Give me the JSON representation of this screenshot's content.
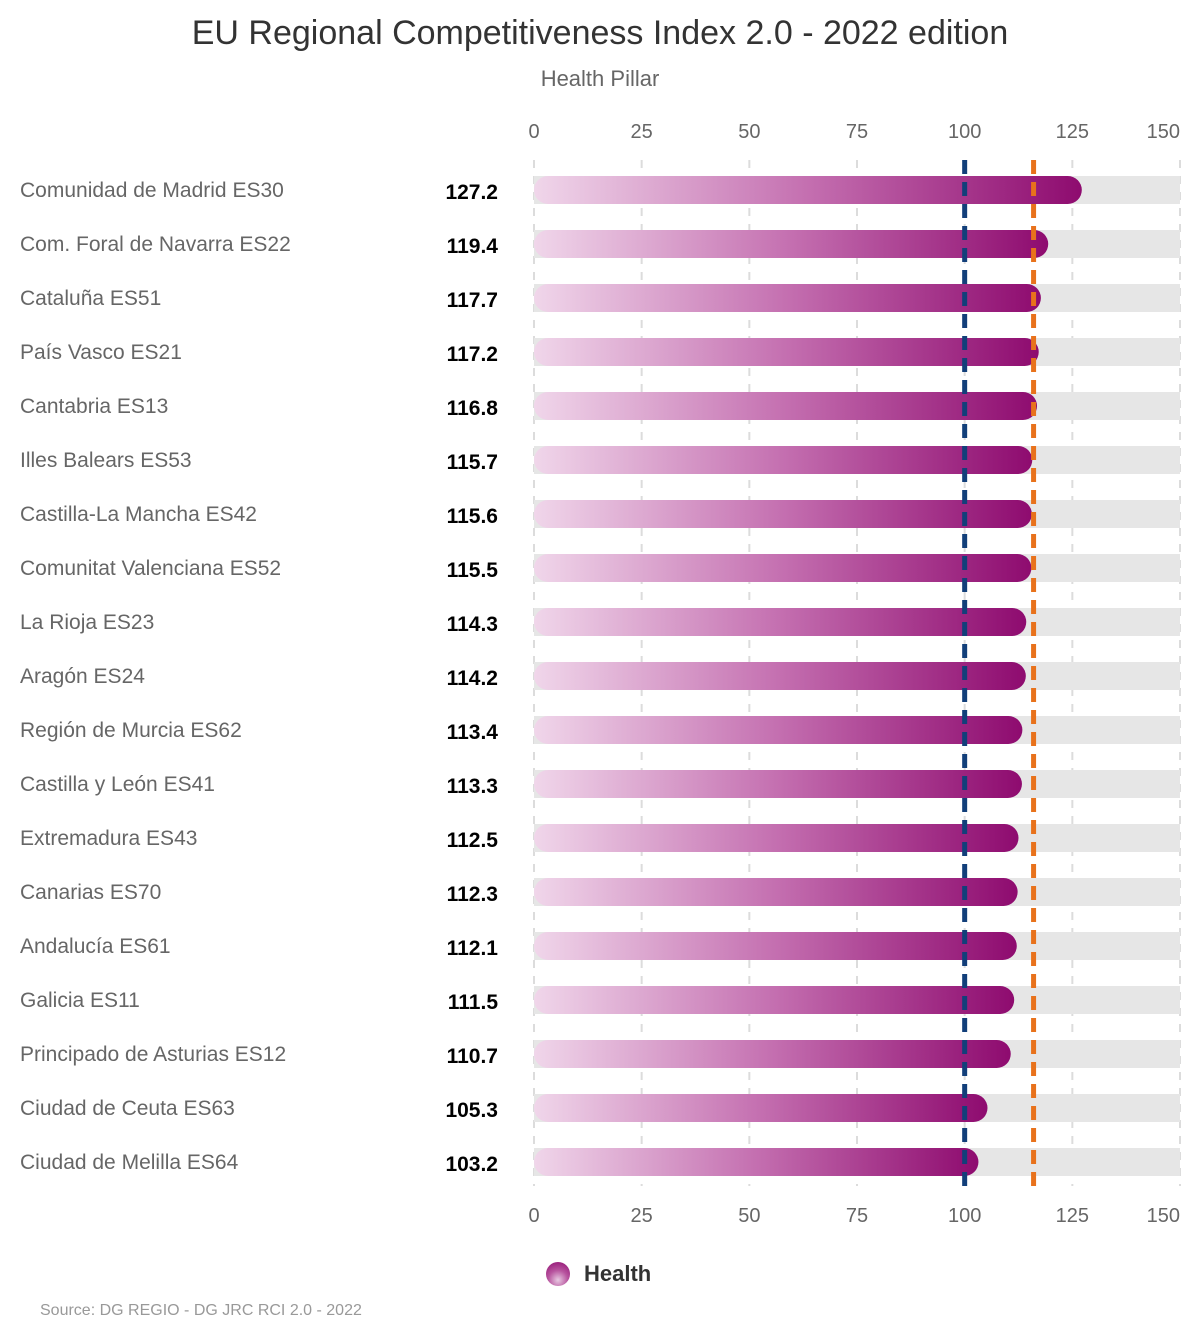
{
  "title": "EU Regional Competitiveness Index 2.0 - 2022 edition",
  "subtitle": "Health Pillar",
  "source": "Source: DG REGIO - DG JRC RCI 2.0 - 2022",
  "legend": {
    "label": "Health"
  },
  "colors": {
    "bar_start": "#f0d6ea",
    "bar_end": "#8e0b6f",
    "track": "#e6e6e6",
    "eu_line": "#123f7a",
    "country_line": "#e8721c",
    "label_text": "#666666",
    "value_text": "#000000"
  },
  "chart_data": {
    "type": "bar",
    "orientation": "horizontal",
    "series": [
      {
        "name": "Health",
        "values": [
          127.2,
          119.4,
          117.7,
          117.2,
          116.8,
          115.7,
          115.6,
          115.5,
          114.3,
          114.2,
          113.4,
          113.3,
          112.5,
          112.3,
          112.1,
          111.5,
          110.7,
          105.3,
          103.2
        ]
      }
    ],
    "categories": [
      "Comunidad de Madrid ES30",
      "Com. Foral de Navarra ES22",
      "Cataluña ES51",
      "País Vasco ES21",
      "Cantabria ES13",
      "Illes Balears ES53",
      "Castilla-La Mancha ES42",
      "Comunitat Valenciana ES52",
      "La Rioja ES23",
      "Aragón ES24",
      "Región de Murcia ES62",
      "Castilla y León ES41",
      "Extremadura ES43",
      "Canarias ES70",
      "Andalucía ES61",
      "Galicia ES11",
      "Principado de Asturias ES12",
      "Ciudad de Ceuta ES63",
      "Ciudad de Melilla ES64"
    ],
    "value_labels": [
      "127.2",
      "119.4",
      "117.7",
      "117.2",
      "116.8",
      "115.7",
      "115.6",
      "115.5",
      "114.3",
      "114.2",
      "113.4",
      "113.3",
      "112.5",
      "112.3",
      "112.1",
      "111.5",
      "110.7",
      "105.3",
      "103.2"
    ],
    "xlim": [
      0,
      150
    ],
    "x_ticks": [
      0,
      25,
      50,
      75,
      100,
      125,
      150
    ],
    "x_tick_labels": [
      "0",
      "25",
      "50",
      "75",
      "100",
      "125",
      "150"
    ],
    "reference_lines": [
      {
        "value": 100,
        "color": "#123f7a",
        "style": "dashed"
      },
      {
        "value": 116,
        "color": "#e8721c",
        "style": "dashed"
      }
    ],
    "grid": true,
    "legend_position": "bottom-center"
  }
}
